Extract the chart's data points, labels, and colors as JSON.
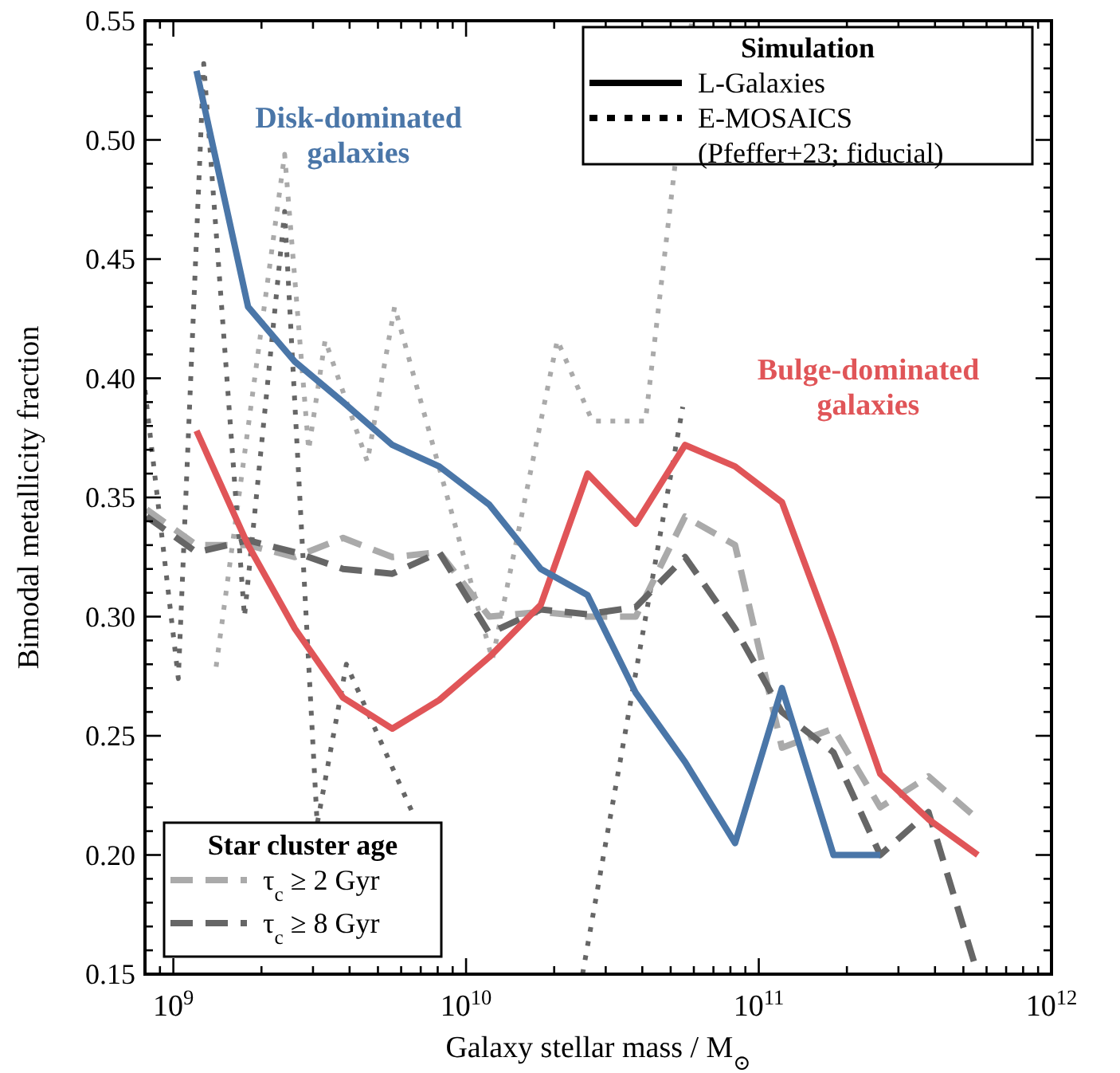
{
  "chart_data": {
    "type": "line",
    "xlabel": "Galaxy stellar mass / M$_{⊙}$",
    "ylabel": "Bimodal metallicity fraction",
    "log": "x",
    "legend": "bottom left",
    "legend_title": "Star cluster age",
    "grid": false,
    "xlim": [
      800000000.0,
      1000000000000.0
    ],
    "ylim": [
      0.15,
      0.55
    ],
    "xticks": [
      {
        "value": 800000000.0,
        "label": null
      },
      {
        "value": 900000000.0,
        "label": null
      },
      {
        "value": 1000000000.0,
        "label": "10$^{9}$"
      },
      {
        "value": 2000000000.0,
        "label": null
      },
      {
        "value": 3000000000.0,
        "label": null
      },
      {
        "value": 4000000000.0,
        "label": null
      },
      {
        "value": 5000000000.0,
        "label": null
      },
      {
        "value": 6000000000.0,
        "label": null
      },
      {
        "value": 7000000000.0,
        "label": null
      },
      {
        "value": 8000000000.0,
        "label": null
      },
      {
        "value": 9000000000.0,
        "label": null
      },
      {
        "value": 10000000000.0,
        "label": "10$^{10}$"
      },
      {
        "value": 20000000000.0,
        "label": null
      },
      {
        "value": 30000000000.0,
        "label": null
      },
      {
        "value": 40000000000.0,
        "label": null
      },
      {
        "value": 50000000000.0,
        "label": null
      },
      {
        "value": 60000000000.0,
        "label": null
      },
      {
        "value": 70000000000.0,
        "label": null
      },
      {
        "value": 80000000000.0,
        "label": null
      },
      {
        "value": 90000000000.0,
        "label": null
      },
      {
        "value": 100000000000.0,
        "label": "10$^{11}$"
      },
      {
        "value": 200000000000.0,
        "label": null
      },
      {
        "value": 300000000000.0,
        "label": null
      },
      {
        "value": 400000000000.0,
        "label": null
      },
      {
        "value": 500000000000.0,
        "label": null
      },
      {
        "value": 600000000000.0,
        "label": null
      },
      {
        "value": 700000000000.0,
        "label": null
      },
      {
        "value": 800000000000.0,
        "label": null
      },
      {
        "value": 900000000000.0,
        "label": null
      },
      {
        "value": 1000000000000.0,
        "label": "10$^{12}$"
      }
    ],
    "yticks": [
      {
        "value": 0.15,
        "label": "0.15"
      },
      {
        "value": 0.2,
        "label": "0.20"
      },
      {
        "value": 0.25,
        "label": "0.25"
      },
      {
        "value": 0.3,
        "label": "0.30"
      },
      {
        "value": 0.35,
        "label": "0.35"
      },
      {
        "value": 0.4,
        "label": "0.40"
      },
      {
        "value": 0.45,
        "label": "0.45"
      },
      {
        "value": 0.5,
        "label": "0.50"
      },
      {
        "value": 0.55,
        "label": "0.55"
      },
      {
        "value": 0.16,
        "label": null
      },
      {
        "value": 0.17,
        "label": null
      },
      {
        "value": 0.18,
        "label": null
      },
      {
        "value": 0.19,
        "label": null
      },
      {
        "value": 0.21,
        "label": null
      },
      {
        "value": 0.22,
        "label": null
      },
      {
        "value": 0.23,
        "label": null
      },
      {
        "value": 0.24,
        "label": null
      },
      {
        "value": 0.26,
        "label": null
      },
      {
        "value": 0.27,
        "label": null
      },
      {
        "value": 0.28,
        "label": null
      },
      {
        "value": 0.29,
        "label": null
      },
      {
        "value": 0.31,
        "label": null
      },
      {
        "value": 0.32,
        "label": null
      },
      {
        "value": 0.33,
        "label": null
      },
      {
        "value": 0.34,
        "label": null
      },
      {
        "value": 0.36,
        "label": null
      },
      {
        "value": 0.37,
        "label": null
      },
      {
        "value": 0.38,
        "label": null
      },
      {
        "value": 0.39,
        "label": null
      },
      {
        "value": 0.41,
        "label": null
      },
      {
        "value": 0.42,
        "label": null
      },
      {
        "value": 0.43,
        "label": null
      },
      {
        "value": 0.44,
        "label": null
      },
      {
        "value": 0.46,
        "label": null
      },
      {
        "value": 0.47,
        "label": null
      },
      {
        "value": 0.48,
        "label": null
      },
      {
        "value": 0.49,
        "label": null
      },
      {
        "value": 0.51,
        "label": null
      },
      {
        "value": 0.52,
        "label": null
      },
      {
        "value": 0.53,
        "label": null
      },
      {
        "value": 0.54,
        "label": null
      }
    ],
    "annotations": [
      "Simulation",
      "L-Galaxies",
      "E-MOSAICS\n(Pfeffer+23; fiducial)"
    ],
    "series": [
      {
        "color": "#aaaaaa",
        "line_style": "dotted",
        "x": [
          1400000000.0,
          2400000000.0,
          2900000000.0,
          3300000000.0,
          4600000000.0,
          5700000000.0,
          12300000000.0,
          20500000000.0,
          27000000000.0,
          41000000000.0,
          59000000000.0
        ],
        "values": [
          0.279,
          0.494,
          0.37,
          0.416,
          0.365,
          0.43,
          0.282,
          0.416,
          0.382,
          0.382,
          0.55
        ]
      },
      {
        "color": "#666666",
        "line_style": "dotted",
        "x": [
          800000000.0,
          1040000000.0,
          1270000000.0,
          1750000000.0,
          2400000000.0,
          3100000000.0,
          3900000000.0,
          6600000000.0,
          10000000000.0,
          25000000000.0,
          55000000000.0
        ],
        "values": [
          0.395,
          0.274,
          0.532,
          0.3,
          0.47,
          0.213,
          0.28,
          0.217,
          null,
          0.15,
          0.388
        ]
      },
      {
        "name": "τ$_{c}$ ≥ 2 Gyr",
        "color": "#aaaaaa",
        "line_style": "dashed",
        "x": [
          810000000.0,
          1200000000.0,
          1800000000.0,
          2600000000.0,
          3800000000.0,
          5600000000.0,
          8100000000.0,
          12000000000.0,
          18000000000.0,
          26000000000.0,
          38000000000.0,
          56000000000.0,
          83000000000.0,
          120000000000.0,
          180000000000.0,
          260000000000.0,
          380000000000.0,
          560000000000.0
        ],
        "values": [
          0.345,
          0.33,
          0.33,
          0.325,
          0.333,
          0.325,
          0.327,
          0.3,
          0.302,
          0.3,
          0.3,
          0.342,
          0.33,
          0.245,
          0.253,
          0.22,
          0.233,
          0.215
        ]
      },
      {
        "name": "τ$_{c}$ ≥ 8 Gyr",
        "color": "#666666",
        "line_style": "dashed",
        "x": [
          810000000.0,
          1200000000.0,
          1800000000.0,
          2600000000.0,
          3800000000.0,
          5600000000.0,
          8100000000.0,
          12000000000.0,
          18000000000.0,
          26000000000.0,
          38000000000.0,
          56000000000.0,
          83000000000.0,
          120000000000.0,
          180000000000.0,
          260000000000.0,
          380000000000.0,
          560000000000.0
        ],
        "values": [
          0.342,
          0.327,
          0.332,
          0.327,
          0.32,
          0.318,
          0.327,
          0.293,
          0.303,
          0.301,
          0.304,
          0.325,
          0.295,
          0.26,
          0.243,
          0.2,
          0.218,
          0.15
        ]
      },
      {
        "name": "Bulge-dominated\ngalaxies",
        "color": "#e05558",
        "line_style": "solid",
        "x": [
          1200000000.0,
          1800000000.0,
          2600000000.0,
          3800000000.0,
          5600000000.0,
          8100000000.0,
          12000000000.0,
          18000000000.0,
          26000000000.0,
          38000000000.0,
          56000000000.0,
          83000000000.0,
          120000000000.0,
          180000000000.0,
          260000000000.0,
          380000000000.0,
          560000000000.0
        ],
        "values": [
          0.378,
          0.33,
          0.295,
          0.266,
          0.253,
          0.265,
          0.283,
          0.305,
          0.36,
          0.339,
          0.372,
          0.363,
          0.348,
          0.29,
          0.234,
          0.215,
          0.2
        ]
      },
      {
        "name": "Disk-dominated\ngalaxies",
        "color": "#4a76a8",
        "line_style": "solid",
        "x": [
          1200000000.0,
          1800000000.0,
          2600000000.0,
          3800000000.0,
          5600000000.0,
          8100000000.0,
          12000000000.0,
          18000000000.0,
          26000000000.0,
          38000000000.0,
          56000000000.0,
          83000000000.0,
          120000000000.0,
          180000000000.0,
          260000000000.0
        ],
        "values": [
          0.529,
          0.43,
          0.407,
          0.39,
          0.372,
          0.363,
          0.347,
          0.32,
          0.309,
          0.268,
          0.239,
          0.205,
          0.27,
          0.2,
          0.2
        ]
      }
    ]
  }
}
